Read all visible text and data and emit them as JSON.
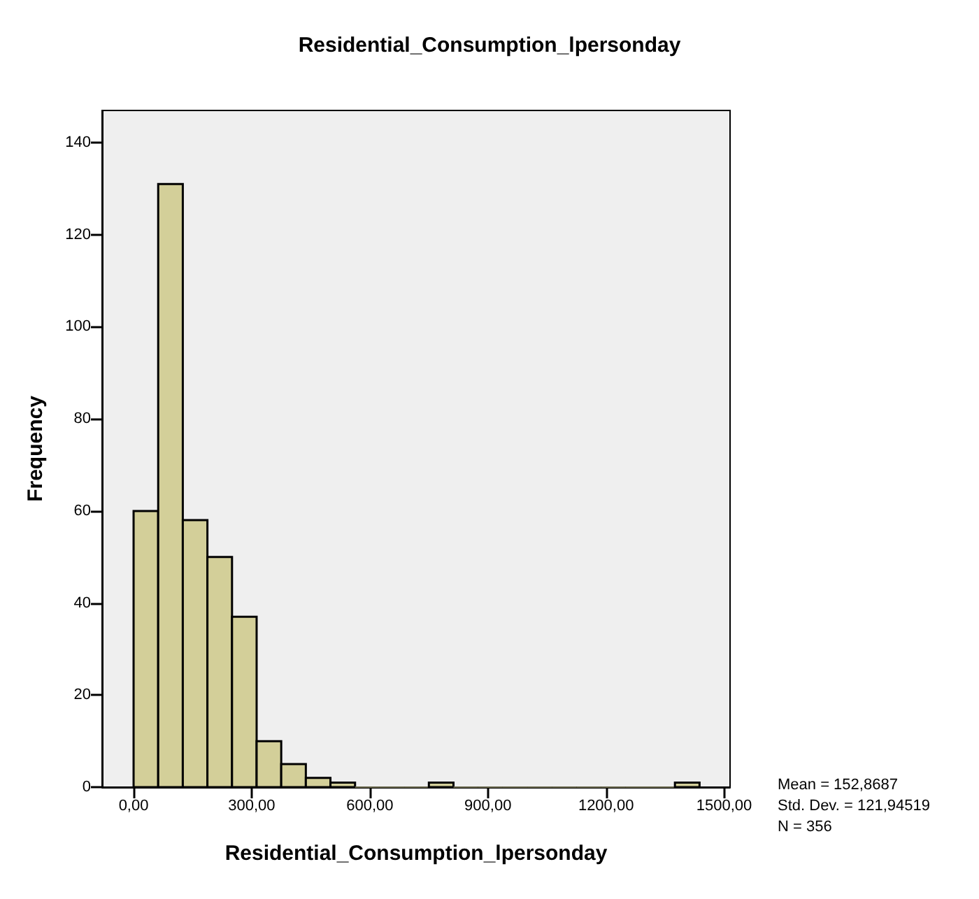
{
  "chart_data": {
    "type": "histogram",
    "title": "Residential_Consumption_lpersonday",
    "xlabel": "Residential_Consumption_lpersonday",
    "ylabel": "Frequency",
    "bins": [
      0,
      62.5,
      125,
      187.5,
      250,
      312.5,
      375,
      437.5,
      500,
      562.5,
      625,
      687.5,
      750,
      812.5,
      875,
      937.5,
      1000,
      1062.5,
      1125,
      1187.5,
      1250,
      1312.5,
      1375,
      1437.5
    ],
    "values": [
      60,
      131,
      58,
      50,
      37,
      10,
      5,
      2,
      1,
      0,
      0,
      0,
      1,
      0,
      0,
      0,
      0,
      0,
      0,
      0,
      0,
      0,
      1
    ],
    "color": "#d3cf99",
    "xlim": [
      -80,
      1515
    ],
    "ylim": [
      0,
      147
    ],
    "xticks": [
      {
        "value": 0,
        "label": "0,00"
      },
      {
        "value": 300,
        "label": "300,00"
      },
      {
        "value": 600,
        "label": "600,00"
      },
      {
        "value": 900,
        "label": "900,00"
      },
      {
        "value": 1200,
        "label": "1200,00"
      },
      {
        "value": 1500,
        "label": "1500,00"
      }
    ],
    "yticks": [
      0,
      20,
      40,
      60,
      80,
      100,
      120,
      140
    ],
    "annotations": [
      "Mean = 152,8687",
      "Std. Dev. = 121,94519",
      "N = 356"
    ],
    "grid": false
  }
}
